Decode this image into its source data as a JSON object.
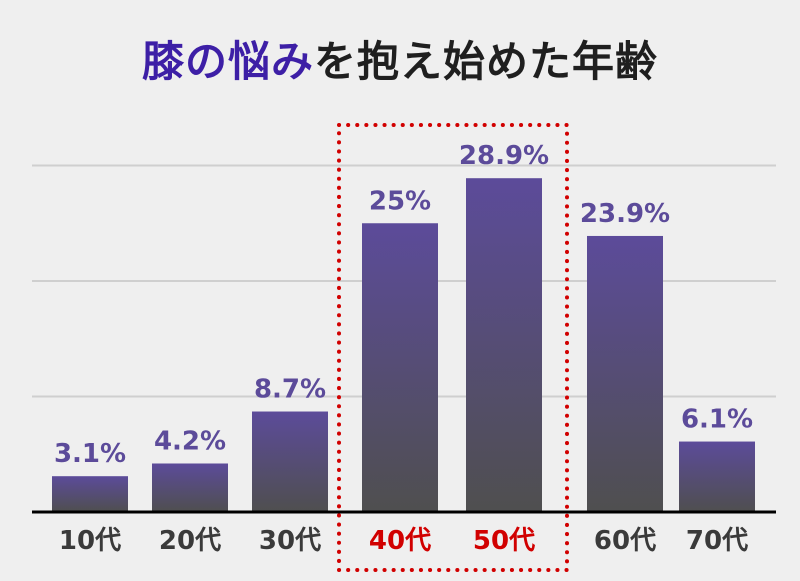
{
  "title": {
    "highlight": "膝の悩み",
    "rest": "を抱え始めた年齢"
  },
  "colors": {
    "background": "#efefef",
    "bar_top": "#5c4b9a",
    "bar_bottom": "#4f4f4f",
    "value_label": "#5c4b9a",
    "highlight": "#d10000",
    "title_accent": "#3d1fa6"
  },
  "chart_data": {
    "type": "bar",
    "title": "膝の悩みを抱え始めた年齢",
    "categories": [
      "10代",
      "20代",
      "30代",
      "40代",
      "50代",
      "60代",
      "70代"
    ],
    "values": [
      3.1,
      4.2,
      8.7,
      25,
      28.9,
      23.9,
      6.1
    ],
    "value_labels": [
      "3.1%",
      "4.2%",
      "8.7%",
      "25%",
      "28.9%",
      "23.9%",
      "6.1%"
    ],
    "highlighted_categories": [
      "40代",
      "50代"
    ],
    "ylim": [
      0,
      31
    ],
    "gridlines": [
      10,
      20,
      30
    ],
    "grid": true,
    "xlabel": "",
    "ylabel": ""
  }
}
